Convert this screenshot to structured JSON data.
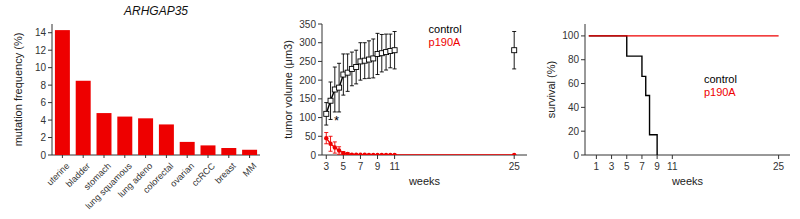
{
  "chart_data": [
    {
      "type": "bar",
      "title": "ARHGAP35",
      "categories": [
        "uterine",
        "bladder",
        "stomach",
        "lung squamous",
        "lung adeno",
        "colorectal",
        "ovarian",
        "ccRCC",
        "breast",
        "MM"
      ],
      "values": [
        14.3,
        8.5,
        4.8,
        4.4,
        4.2,
        3.5,
        1.5,
        1.1,
        0.8,
        0.6
      ],
      "color": "#ee0000",
      "ylabel": "mutation frequency (%)",
      "ylim": [
        0,
        15
      ],
      "yticks": [
        0,
        2,
        4,
        6,
        8,
        10,
        12,
        14
      ],
      "grid": false
    },
    {
      "type": "line",
      "xlabel": "weeks",
      "ylabel": "tumor volume (μm3)",
      "xlim": [
        2.5,
        26.5
      ],
      "xticks": [
        3,
        5,
        7,
        9,
        11,
        25
      ],
      "ylim": [
        0,
        350
      ],
      "yticks": [
        0,
        50,
        100,
        150,
        200,
        250,
        300,
        350
      ],
      "grid": false,
      "legend": "upper center",
      "series": [
        {
          "name": "control",
          "color": "#000000",
          "marker": "square",
          "line_style": "solid",
          "x": [
            3,
            3.5,
            4,
            4.5,
            5,
            5.5,
            6,
            6.5,
            7,
            7.5,
            8,
            8.5,
            9,
            9.5,
            10,
            10.5,
            11
          ],
          "values": [
            110,
            145,
            175,
            180,
            215,
            220,
            230,
            235,
            250,
            252,
            255,
            258,
            270,
            272,
            275,
            278,
            280
          ],
          "errors": [
            30,
            50,
            60,
            65,
            55,
            50,
            45,
            45,
            50,
            48,
            50,
            52,
            55,
            50,
            48,
            45,
            50
          ]
        },
        {
          "name": "control",
          "color": "#000000",
          "marker": "square",
          "line_style": "none",
          "x": [
            25
          ],
          "values": [
            280
          ],
          "errors": [
            50
          ]
        },
        {
          "name": "p190A",
          "color": "#ee0000",
          "marker": "circle",
          "line_style": "solid",
          "x": [
            3,
            3.5,
            4,
            4.5,
            5,
            5.5,
            6,
            6.5,
            7,
            7.5,
            8,
            8.5,
            9,
            9.5,
            10,
            10.5,
            11,
            25
          ],
          "values": [
            45,
            30,
            20,
            12,
            5,
            3,
            1,
            0.5,
            0.5,
            0.5,
            0.3,
            0.3,
            0.2,
            0.2,
            0.2,
            0.2,
            0.2,
            0.2
          ],
          "errors": [
            15,
            20,
            15,
            10,
            4,
            3,
            1,
            0.5,
            0.5,
            0.3,
            0.2,
            0.2,
            0.2,
            0.2,
            0.2,
            0.2,
            0.2,
            0.2
          ]
        }
      ],
      "annotations": [
        {
          "text": "*",
          "x": 4.2,
          "y": 80
        }
      ]
    },
    {
      "type": "line",
      "xlabel": "weeks",
      "ylabel": "survival (%)",
      "xlim": [
        -0.5,
        26.5
      ],
      "xticks": [
        1,
        3,
        5,
        7,
        9,
        11,
        25
      ],
      "ylim": [
        0,
        110
      ],
      "yticks": [
        0,
        20,
        40,
        60,
        80,
        100
      ],
      "grid": false,
      "legend": "right",
      "series": [
        {
          "name": "control",
          "color": "#000000",
          "marker": "none",
          "line_style": "solid",
          "x": [
            0,
            5,
            5,
            7,
            7,
            7.5,
            7.5,
            8,
            8,
            9,
            9
          ],
          "values": [
            100,
            100,
            83,
            83,
            66,
            66,
            50,
            50,
            17,
            17,
            0
          ]
        },
        {
          "name": "p190A",
          "color": "#ee0000",
          "marker": "none",
          "line_style": "solid",
          "x": [
            0,
            25
          ],
          "values": [
            100,
            100
          ]
        }
      ]
    }
  ]
}
